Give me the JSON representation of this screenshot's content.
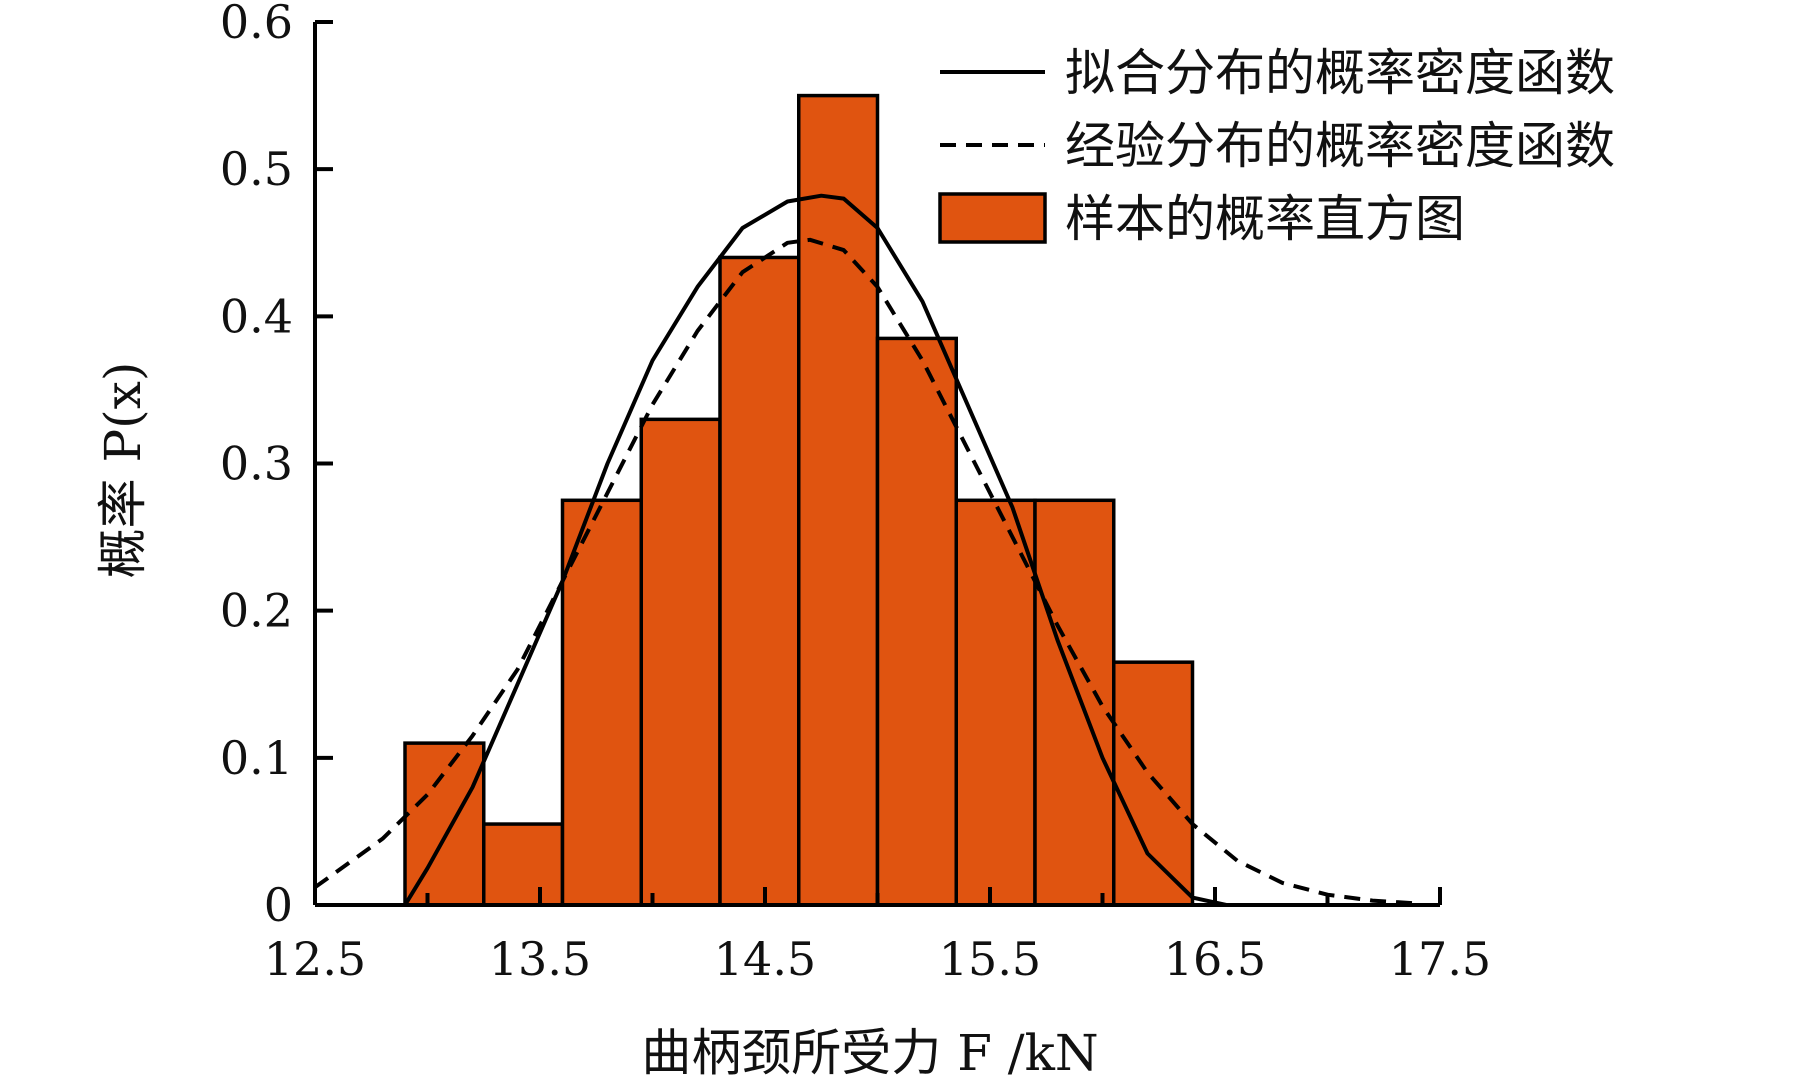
{
  "chart_data": {
    "type": "bar",
    "title": "",
    "xlabel": "曲柄颈所受力 F /kN",
    "ylabel": "概率 P(x)",
    "xlim": [
      12.5,
      17.5
    ],
    "ylim": [
      0,
      0.6
    ],
    "x_ticks": [
      "12.5",
      "13.5",
      "14.5",
      "15.5",
      "16.5",
      "17.5"
    ],
    "y_ticks": [
      "0",
      "0.1",
      "0.2",
      "0.3",
      "0.4",
      "0.5",
      "0.6"
    ],
    "grid": false,
    "legend_position": "top-right",
    "bar_color": "#E05410",
    "bins": [
      {
        "x0": 12.9,
        "x1": 13.25,
        "value": 0.11
      },
      {
        "x0": 13.25,
        "x1": 13.6,
        "value": 0.055
      },
      {
        "x0": 13.6,
        "x1": 13.95,
        "value": 0.275
      },
      {
        "x0": 13.95,
        "x1": 14.3,
        "value": 0.33
      },
      {
        "x0": 14.3,
        "x1": 14.65,
        "value": 0.44
      },
      {
        "x0": 14.65,
        "x1": 15.0,
        "value": 0.55
      },
      {
        "x0": 15.0,
        "x1": 15.35,
        "value": 0.385
      },
      {
        "x0": 15.35,
        "x1": 15.7,
        "value": 0.275
      },
      {
        "x0": 15.7,
        "x1": 16.05,
        "value": 0.275
      },
      {
        "x0": 16.05,
        "x1": 16.4,
        "value": 0.165
      }
    ],
    "series": [
      {
        "name": "拟合分布的概率密度函数",
        "style": "solid",
        "x": [
          12.75,
          12.9,
          13.0,
          13.2,
          13.4,
          13.6,
          13.8,
          14.0,
          14.2,
          14.4,
          14.6,
          14.75,
          14.85,
          15.0,
          15.2,
          15.4,
          15.6,
          15.8,
          16.0,
          16.2,
          16.4,
          16.55
        ],
        "y": [
          0.0,
          0.0,
          0.025,
          0.08,
          0.15,
          0.22,
          0.3,
          0.37,
          0.42,
          0.46,
          0.478,
          0.482,
          0.48,
          0.46,
          0.41,
          0.34,
          0.27,
          0.18,
          0.1,
          0.035,
          0.005,
          0.0
        ]
      },
      {
        "name": "经验分布的概率密度函数",
        "style": "dashed",
        "x": [
          12.5,
          12.8,
          13.0,
          13.2,
          13.4,
          13.6,
          13.8,
          14.0,
          14.2,
          14.4,
          14.6,
          14.7,
          14.85,
          15.0,
          15.2,
          15.4,
          15.6,
          15.8,
          16.0,
          16.2,
          16.4,
          16.6,
          16.8,
          17.0,
          17.2,
          17.4
        ],
        "y": [
          0.012,
          0.045,
          0.075,
          0.115,
          0.16,
          0.22,
          0.28,
          0.34,
          0.39,
          0.43,
          0.45,
          0.452,
          0.445,
          0.42,
          0.37,
          0.31,
          0.25,
          0.19,
          0.135,
          0.09,
          0.055,
          0.03,
          0.015,
          0.007,
          0.003,
          0.001
        ]
      }
    ],
    "legend": [
      {
        "label": "拟合分布的概率密度函数",
        "kind": "solid-line"
      },
      {
        "label": "经验分布的概率密度函数",
        "kind": "dashed-line"
      },
      {
        "label": "样本的概率直方图",
        "kind": "bar"
      }
    ]
  }
}
